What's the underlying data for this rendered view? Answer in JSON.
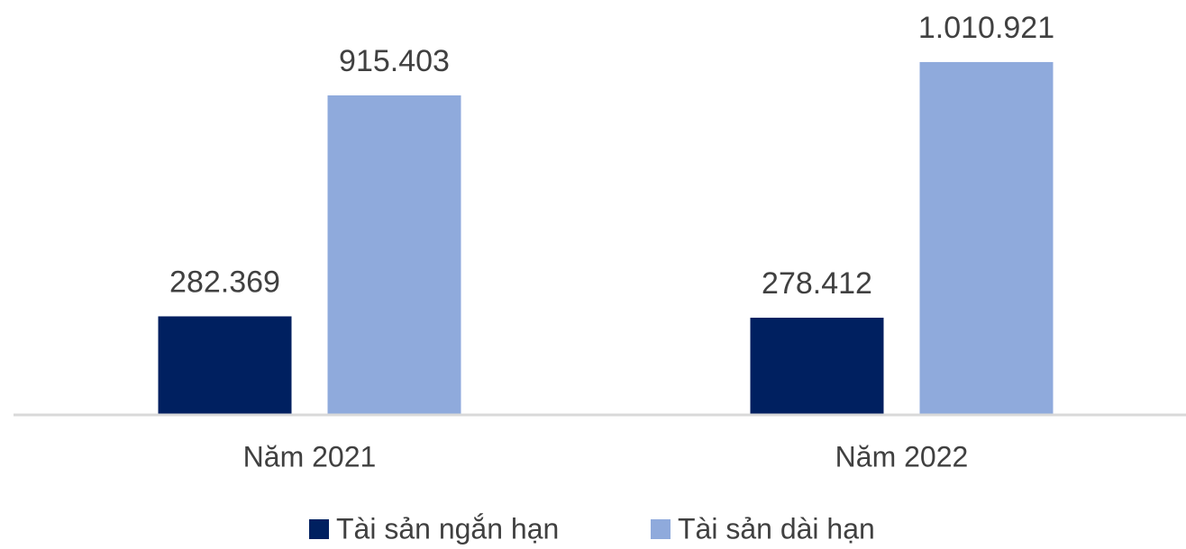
{
  "chart_data": {
    "type": "bar",
    "categories": [
      "Năm 2021",
      "Năm 2022"
    ],
    "series": [
      {
        "name": "Tài sản ngắn hạn",
        "color": "#002060",
        "values": [
          282369,
          278412
        ],
        "value_labels": [
          "282.369",
          "278.412"
        ]
      },
      {
        "name": "Tài sản dài hạn",
        "color": "#8faadc",
        "values": [
          915403,
          1010921
        ],
        "value_labels": [
          "915.403",
          "1.010.921"
        ]
      }
    ],
    "ylim": [
      0,
      1150000
    ],
    "legend": "bottom"
  }
}
